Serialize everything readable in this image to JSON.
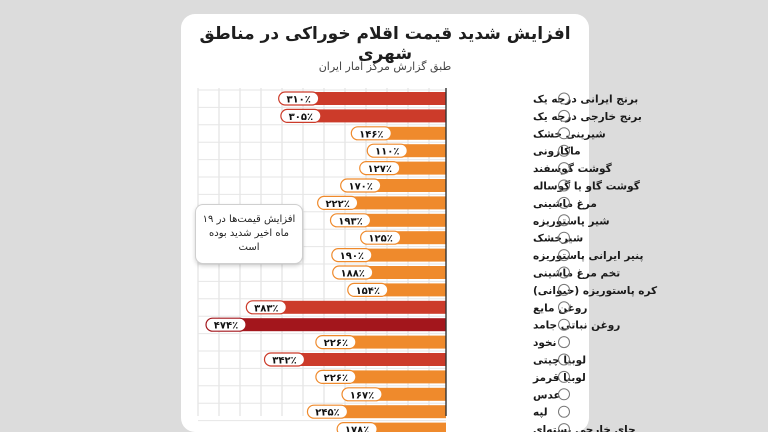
{
  "title": "افزایش شدید قیمت اقلام خوراکی در مناطق شهری",
  "subtitle": "طبق گزارش مرکز آمار ایران",
  "note": "افزایش قیمت‌ها در ۱۹ ماه اخیر شدید بوده است",
  "colors": {
    "dark_red": "#a3161c",
    "red": "#cc3b2a",
    "orange": "#ef8a2c"
  },
  "chart_data": {
    "type": "bar",
    "orientation": "horizontal",
    "unit": "%",
    "categories": [
      "برنج ایرانی درجه یک",
      "برنج خارجی درجه یک",
      "شیرینی خشک",
      "ماکارونی",
      "گوشت گوسفند",
      "گوشت گاو یا گوساله",
      "مرغ ماشینی",
      "شیر پاستوریزه",
      "شیرخشک",
      "پنیر ایرانی پاستوریزه",
      "تخم مرغ ماشینی",
      "کره پاستوریزه (حیوانی)",
      "روغن مایع",
      "روغن نباتی جامد",
      "نخود",
      "لوبیا چیتی",
      "لوبیا قرمز",
      "عدس",
      "لپه",
      "چای خارجی بسته‌ای"
    ],
    "values": [
      310,
      305,
      146,
      110,
      127,
      170,
      222,
      193,
      125,
      190,
      188,
      154,
      383,
      474,
      226,
      342,
      226,
      167,
      245,
      178
    ],
    "labels": [
      "۳۱۰٪",
      "۳۰۵٪",
      "۱۴۶٪",
      "۱۱۰٪",
      "۱۲۷٪",
      "۱۷۰٪",
      "۲۲۲٪",
      "۱۹۳٪",
      "۱۲۵٪",
      "۱۹۰٪",
      "۱۸۸٪",
      "۱۵۴٪",
      "۳۸۳٪",
      "۴۷۴٪",
      "۲۲۶٪",
      "۳۴۲٪",
      "۲۲۶٪",
      "۱۶۷٪",
      "۲۴۵٪",
      "۱۷۸٪"
    ],
    "icons": [
      "rice-bowl-icon",
      "rice-bowl-icon",
      "cake-slice-icon",
      "pasta-icon",
      "sheep-icon",
      "cow-icon",
      "chicken-icon",
      "milk-bottle-icon",
      "milk-powder-icon",
      "cheese-icon",
      "egg-icon",
      "butter-icon",
      "oil-bottle-icon",
      "oil-can-icon",
      "chickpea-icon",
      "pinto-bean-icon",
      "red-bean-icon",
      "lentil-icon",
      "split-pea-icon",
      "tea-cup-icon"
    ],
    "xlim": [
      0,
      500
    ]
  }
}
